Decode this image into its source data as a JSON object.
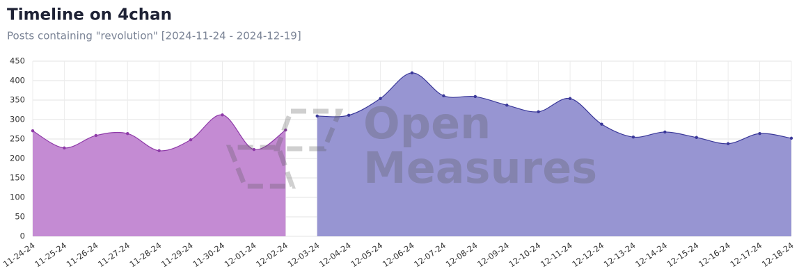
{
  "chart_data": {
    "type": "area",
    "title": "Timeline on 4chan",
    "subtitle": "Posts containing \"revolution\" [2024-11-24 - 2024-12-19]",
    "watermark": [
      "Open",
      "Measures"
    ],
    "categories": [
      "11-24-24",
      "11-25-24",
      "11-26-24",
      "11-27-24",
      "11-28-24",
      "11-29-24",
      "11-30-24",
      "12-01-24",
      "12-02-24",
      "12-03-24",
      "12-04-24",
      "12-05-24",
      "12-06-24",
      "12-07-24",
      "12-08-24",
      "12-09-24",
      "12-10-24",
      "12-11-24",
      "12-12-24",
      "12-13-24",
      "12-14-24",
      "12-15-24",
      "12-16-24",
      "12-17-24",
      "12-18-24"
    ],
    "series": [
      {
        "color": "#c48bd3",
        "line_color": "#8e3aa8",
        "values": [
          271,
          227,
          259,
          264,
          220,
          248,
          312,
          223,
          273,
          null,
          null,
          null,
          null,
          null,
          null,
          null,
          null,
          null,
          null,
          null,
          null,
          null,
          null,
          null,
          null
        ]
      },
      {
        "color": "#9795d2",
        "line_color": "#3a3899",
        "values": [
          null,
          null,
          null,
          null,
          null,
          null,
          null,
          null,
          null,
          309,
          311,
          354,
          420,
          361,
          359,
          337,
          320,
          354,
          288,
          255,
          268,
          254,
          238,
          264,
          252
        ]
      }
    ],
    "ylim": [
      0,
      450
    ],
    "yticks": [
      0,
      50,
      100,
      150,
      200,
      250,
      300,
      350,
      400,
      450
    ],
    "grid": true
  }
}
